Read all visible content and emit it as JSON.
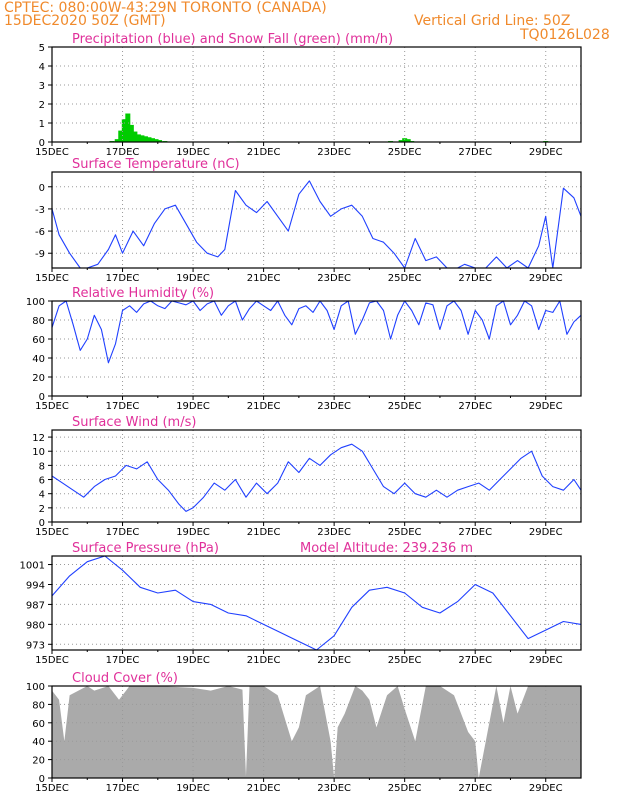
{
  "header": {
    "line1_left": "CPTEC:   080:00W-43:29N   TORONTO (CANADA)",
    "line2_left": "15DEC2020 50Z (GMT)",
    "line2_right": "Vertical Grid Line: 50Z",
    "line3_right": "TQ0126L028"
  },
  "chart_data": [
    {
      "type": "bar",
      "title": "Precipitation (blue) and Snow Fall (green) (mm/h)",
      "xlim": [
        0,
        15
      ],
      "ylim": [
        0,
        5
      ],
      "yticks": [
        0,
        1,
        2,
        3,
        4,
        5
      ],
      "xtick_labels": [
        "15DEC",
        "17DEC",
        "19DEC",
        "21DEC",
        "23DEC",
        "25DEC",
        "27DEC",
        "29DEC"
      ],
      "grid": true,
      "series": [
        {
          "color": "#00cc00",
          "x": [
            1.7,
            1.85,
            1.95,
            2.05,
            2.15,
            2.25,
            2.35,
            2.45,
            2.55,
            2.65,
            2.75,
            2.85,
            2.95,
            3.05,
            3.2,
            5.3,
            9.6,
            9.9,
            10.0,
            10.1,
            10.2,
            14.0
          ],
          "values": [
            0.05,
            0.15,
            0.6,
            1.2,
            1.5,
            0.9,
            0.55,
            0.4,
            0.35,
            0.3,
            0.25,
            0.2,
            0.15,
            0.1,
            0.05,
            0.03,
            0.05,
            0.1,
            0.2,
            0.15,
            0.05,
            0.05
          ]
        }
      ]
    },
    {
      "type": "line",
      "title": "Surface Temperature (nC)",
      "xlim": [
        0,
        15
      ],
      "ylim": [
        -11,
        2
      ],
      "yticks": [
        0,
        -3,
        -6,
        -9
      ],
      "xtick_labels": [
        "15DEC",
        "17DEC",
        "19DEC",
        "21DEC",
        "23DEC",
        "25DEC",
        "27DEC",
        "29DEC"
      ],
      "grid": true,
      "series": [
        {
          "color": "#2040ff",
          "x": [
            0,
            0.2,
            0.5,
            0.8,
            1.0,
            1.3,
            1.6,
            1.8,
            2.0,
            2.3,
            2.6,
            2.9,
            3.2,
            3.5,
            3.8,
            4.1,
            4.4,
            4.7,
            4.9,
            5.2,
            5.5,
            5.8,
            6.1,
            6.4,
            6.7,
            7.0,
            7.3,
            7.6,
            7.9,
            8.2,
            8.5,
            8.8,
            9.1,
            9.4,
            9.7,
            10.0,
            10.3,
            10.6,
            10.9,
            11.2,
            11.5,
            11.7,
            12.0,
            12.3,
            12.6,
            12.9,
            13.2,
            13.5,
            13.8,
            14.0,
            14.2,
            14.5,
            14.8,
            15.0
          ],
          "values": [
            -3,
            -6.5,
            -9,
            -11.5,
            -11,
            -10.5,
            -8.5,
            -6.5,
            -9,
            -6,
            -8,
            -5,
            -3,
            -2.5,
            -5,
            -7.5,
            -9,
            -9.5,
            -8.5,
            -0.5,
            -2.5,
            -3.5,
            -2,
            -4,
            -6,
            -1,
            0.8,
            -2,
            -4,
            -3,
            -2.5,
            -4,
            -7,
            -7.5,
            -9,
            -11,
            -7,
            -10,
            -9.5,
            -11,
            -11.5,
            -10.5,
            -11,
            -12,
            -9.5,
            -11,
            -10,
            -11,
            -8,
            -4,
            -11,
            -0.2,
            -1.5,
            -4
          ]
        }
      ]
    },
    {
      "type": "line",
      "title": "Relative Humidity (%)",
      "xlim": [
        0,
        15
      ],
      "ylim": [
        0,
        100
      ],
      "yticks": [
        0,
        20,
        40,
        60,
        80,
        100
      ],
      "xtick_labels": [
        "15DEC",
        "17DEC",
        "19DEC",
        "21DEC",
        "23DEC",
        "25DEC",
        "27DEC",
        "29DEC"
      ],
      "grid": true,
      "series": [
        {
          "color": "#2040ff",
          "x": [
            0,
            0.2,
            0.4,
            0.6,
            0.8,
            1.0,
            1.2,
            1.4,
            1.6,
            1.8,
            2.0,
            2.2,
            2.4,
            2.6,
            2.8,
            3.0,
            3.2,
            3.4,
            3.6,
            3.8,
            4.0,
            4.2,
            4.4,
            4.6,
            4.8,
            5.0,
            5.2,
            5.4,
            5.6,
            5.8,
            6.0,
            6.2,
            6.4,
            6.6,
            6.8,
            7.0,
            7.2,
            7.4,
            7.6,
            7.8,
            8.0,
            8.2,
            8.4,
            8.6,
            8.8,
            9.0,
            9.2,
            9.4,
            9.6,
            9.8,
            10.0,
            10.2,
            10.4,
            10.6,
            10.8,
            11.0,
            11.2,
            11.4,
            11.6,
            11.8,
            12.0,
            12.2,
            12.4,
            12.6,
            12.8,
            13.0,
            13.2,
            13.4,
            13.6,
            13.8,
            14.0,
            14.2,
            14.4,
            14.6,
            14.8,
            15.0
          ],
          "values": [
            72,
            95,
            100,
            75,
            48,
            60,
            85,
            70,
            35,
            55,
            90,
            95,
            88,
            97,
            100,
            95,
            92,
            100,
            98,
            96,
            100,
            90,
            97,
            100,
            85,
            95,
            100,
            80,
            92,
            100,
            95,
            90,
            100,
            85,
            75,
            92,
            95,
            88,
            100,
            90,
            70,
            95,
            100,
            65,
            80,
            98,
            100,
            90,
            60,
            85,
            100,
            90,
            75,
            98,
            96,
            70,
            95,
            100,
            90,
            65,
            90,
            80,
            60,
            95,
            100,
            75,
            85,
            100,
            95,
            70,
            90,
            88,
            100,
            65,
            78,
            85
          ]
        }
      ]
    },
    {
      "type": "line",
      "title": "Surface Wind (m/s)",
      "xlim": [
        0,
        15
      ],
      "ylim": [
        0,
        13
      ],
      "yticks": [
        0,
        2,
        4,
        6,
        8,
        10,
        12
      ],
      "xtick_labels": [
        "15DEC",
        "17DEC",
        "19DEC",
        "21DEC",
        "23DEC",
        "25DEC",
        "27DEC",
        "29DEC"
      ],
      "grid": true,
      "series": [
        {
          "color": "#2040ff",
          "x": [
            0,
            0.3,
            0.6,
            0.9,
            1.2,
            1.5,
            1.8,
            2.1,
            2.4,
            2.7,
            3.0,
            3.3,
            3.6,
            3.8,
            4.0,
            4.3,
            4.6,
            4.9,
            5.2,
            5.5,
            5.8,
            6.1,
            6.4,
            6.7,
            7.0,
            7.3,
            7.6,
            7.9,
            8.2,
            8.5,
            8.8,
            9.1,
            9.4,
            9.7,
            10.0,
            10.3,
            10.6,
            10.9,
            11.2,
            11.5,
            11.8,
            12.1,
            12.4,
            12.7,
            13.0,
            13.3,
            13.6,
            13.9,
            14.2,
            14.5,
            14.8,
            15.0
          ],
          "values": [
            6.5,
            5.5,
            4.5,
            3.5,
            5.0,
            6.0,
            6.5,
            8.0,
            7.5,
            8.5,
            6.0,
            4.5,
            2.5,
            1.5,
            2.0,
            3.5,
            5.5,
            4.5,
            6.0,
            3.5,
            5.5,
            4.0,
            5.5,
            8.5,
            7.0,
            9.0,
            8.0,
            9.5,
            10.5,
            11.0,
            10.0,
            7.5,
            5.0,
            4.0,
            5.5,
            4.0,
            3.5,
            4.5,
            3.5,
            4.5,
            5.0,
            5.5,
            4.5,
            6.0,
            7.5,
            9.0,
            10.0,
            6.5,
            5.0,
            4.5,
            6.0,
            4.5
          ]
        }
      ]
    },
    {
      "type": "line",
      "title": "Surface Pressure (hPa)",
      "annotation": "Model Altitude: 239.236  m",
      "xlim": [
        0,
        15
      ],
      "ylim": [
        971,
        1004
      ],
      "yticks": [
        1001,
        994,
        987,
        980,
        973
      ],
      "xtick_labels": [
        "15DEC",
        "17DEC",
        "19DEC",
        "21DEC",
        "23DEC",
        "25DEC",
        "27DEC",
        "29DEC"
      ],
      "grid": true,
      "series": [
        {
          "color": "#2040ff",
          "x": [
            0,
            0.5,
            1.0,
            1.5,
            2.0,
            2.5,
            3.0,
            3.5,
            4.0,
            4.5,
            5.0,
            5.5,
            6.0,
            6.5,
            7.0,
            7.5,
            8.0,
            8.5,
            9.0,
            9.5,
            10.0,
            10.5,
            11.0,
            11.5,
            12.0,
            12.5,
            13.0,
            13.5,
            14.0,
            14.5,
            15.0
          ],
          "values": [
            990,
            997,
            1002,
            1004,
            999,
            993,
            991,
            992,
            988,
            987,
            984,
            983,
            980,
            977,
            974,
            970,
            976,
            986,
            992,
            993,
            991,
            986,
            984,
            988,
            994,
            991,
            983,
            975,
            978,
            981,
            980
          ]
        }
      ]
    },
    {
      "type": "area",
      "title": "Cloud Cover (%)",
      "xlim": [
        0,
        15
      ],
      "ylim": [
        0,
        100
      ],
      "yticks": [
        0,
        20,
        40,
        60,
        80,
        100
      ],
      "xtick_labels": [
        "15DEC",
        "17DEC",
        "19DEC",
        "21DEC",
        "23DEC",
        "25DEC",
        "27DEC",
        "29DEC"
      ],
      "grid": true,
      "series": [
        {
          "color": "#aaaaaa",
          "x": [
            0,
            0.2,
            0.35,
            0.5,
            1.0,
            1.2,
            1.6,
            1.9,
            2.2,
            3.0,
            4.0,
            4.5,
            5.0,
            5.4,
            5.5,
            5.6,
            6.0,
            6.4,
            6.8,
            7.0,
            7.2,
            7.6,
            7.9,
            8.0,
            8.1,
            8.3,
            8.6,
            8.8,
            9.0,
            9.2,
            9.5,
            9.8,
            10.0,
            10.3,
            10.6,
            11.0,
            11.4,
            11.8,
            12.0,
            12.1,
            12.3,
            12.6,
            12.8,
            13.0,
            13.2,
            13.5,
            14.0,
            14.5,
            15.0
          ],
          "values": [
            95,
            85,
            40,
            90,
            100,
            95,
            100,
            85,
            100,
            100,
            98,
            95,
            100,
            96,
            2,
            100,
            100,
            90,
            40,
            55,
            90,
            100,
            40,
            0,
            55,
            70,
            100,
            95,
            85,
            55,
            90,
            100,
            75,
            40,
            100,
            100,
            90,
            50,
            40,
            0,
            40,
            100,
            60,
            100,
            70,
            100,
            100,
            100,
            100
          ]
        }
      ]
    }
  ]
}
